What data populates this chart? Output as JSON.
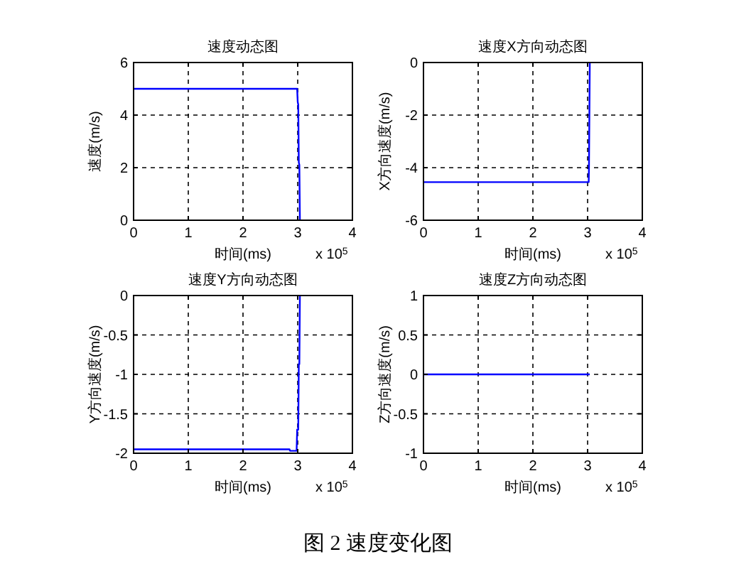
{
  "chart_data": [
    {
      "type": "line",
      "title": "速度动态图",
      "xlabel": "时间(ms)",
      "ylabel": "速度(m/s)",
      "annotations": [
        "x 10$^{5}$"
      ],
      "x": [
        0,
        2.99,
        3.0,
        3.01,
        3.02,
        3.03,
        3.04
      ],
      "series": [
        {
          "color": "#0000ff",
          "values": [
            5,
            5,
            4.5,
            4.4,
            2.2,
            2.1,
            0
          ]
        }
      ],
      "xlim": [
        0,
        4
      ],
      "xticks": [
        0,
        1,
        2,
        3,
        4
      ],
      "ylim": [
        0,
        6
      ],
      "yticks": [
        0,
        2,
        4,
        6
      ],
      "grid": true
    },
    {
      "type": "line",
      "title": "速度X方向动态图",
      "xlabel": "时间(ms)",
      "ylabel": "X方向速度(m/s)",
      "annotations": [
        "x 10$^{5}$"
      ],
      "x": [
        0,
        3.02,
        3.025,
        3.04
      ],
      "series": [
        {
          "color": "#0000ff",
          "values": [
            -4.55,
            -4.55,
            -4,
            0
          ]
        }
      ],
      "xlim": [
        0,
        4
      ],
      "xticks": [
        0,
        1,
        2,
        3,
        4
      ],
      "ylim": [
        -6,
        0
      ],
      "yticks": [
        -6,
        -4,
        -2,
        0
      ],
      "grid": true
    },
    {
      "type": "line",
      "title": "速度Y方向动态图",
      "xlabel": "时间(ms)",
      "ylabel": "Y方向速度(m/s)",
      "annotations": [
        "x 10$^{5}$"
      ],
      "x": [
        0,
        2.85,
        2.86,
        2.98,
        2.99,
        3.01,
        3.02,
        3.03,
        3.04
      ],
      "series": [
        {
          "color": "#0000ff",
          "values": [
            -1.95,
            -1.95,
            -1.97,
            -1.97,
            -1.7,
            -1.7,
            -0.87,
            -0.87,
            0
          ]
        }
      ],
      "xlim": [
        0,
        4
      ],
      "xticks": [
        0,
        1,
        2,
        3,
        4
      ],
      "ylim": [
        -2,
        0
      ],
      "yticks": [
        -2,
        -1.5,
        -1,
        -0.5,
        0
      ],
      "grid": true
    },
    {
      "type": "line",
      "title": "速度Z方向动态图",
      "xlabel": "时间(ms)",
      "ylabel": "Z方向速度(m/s)",
      "annotations": [
        "x 10$^{5}$",
        "图 2 速度变化图"
      ],
      "x": [
        0,
        3.04
      ],
      "series": [
        {
          "color": "#0000ff",
          "values": [
            0,
            0
          ]
        }
      ],
      "xlim": [
        0,
        4
      ],
      "xticks": [
        0,
        1,
        2,
        3,
        4
      ],
      "ylim": [
        -1,
        1
      ],
      "yticks": [
        -1,
        -0.5,
        0,
        0.5,
        1
      ],
      "grid": true
    }
  ]
}
